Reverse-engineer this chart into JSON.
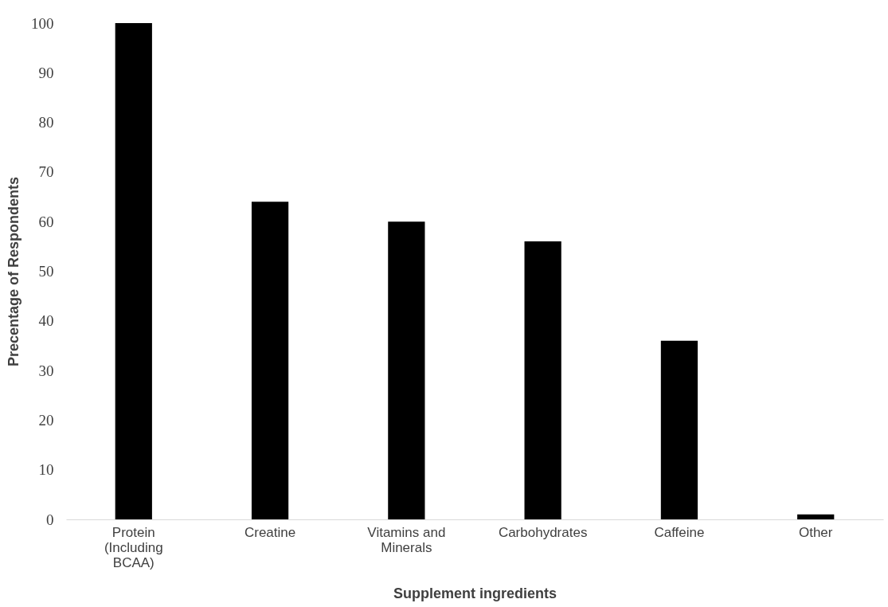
{
  "chart_data": {
    "type": "bar",
    "xlabel": "Supplement ingredients",
    "ylabel": "Precentage of Respondents",
    "categories": [
      "Protein (Including BCAA)",
      "Creatine",
      "Vitamins and Minerals",
      "Carbohydrates",
      "Caffeine",
      "Other"
    ],
    "values": [
      100,
      64,
      60,
      56,
      36,
      1
    ],
    "color": "#000000",
    "ylim": [
      0,
      100
    ],
    "yticks": [
      0,
      10,
      20,
      30,
      40,
      50,
      60,
      70,
      80,
      90,
      100
    ],
    "grid": false
  }
}
